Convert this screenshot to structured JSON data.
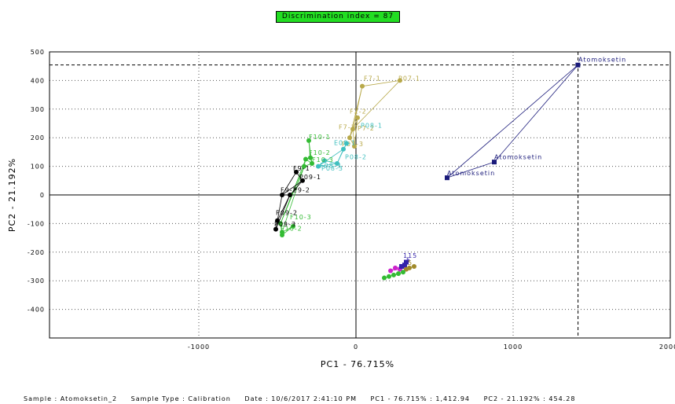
{
  "badge": "Discrimination index = 87",
  "footer": {
    "sample": "Sample : Atomoksetin_2",
    "sample_type": "Sample Type : Calibration",
    "date": "Date : 10/6/2017 2:41:10 PM",
    "pc1": "PC1 - 76.715% : 1,412.94",
    "pc2": "PC2 - 21.192% : 454.28"
  },
  "colors": {
    "atomoksetin": "#1a1a7a",
    "f07": "#b8a94a",
    "f08": "#3fbfbf",
    "f10": "#33bb33",
    "f09": "#000000",
    "p09": "#000000",
    "p10": "#33bb33",
    "cluster_magenta": "#cc22cc",
    "cluster_purple": "#3322aa",
    "cluster_olive": "#a08a2a",
    "cluster_green": "#33bb33",
    "badge": "#22dd22"
  },
  "chart_data": {
    "type": "scatter",
    "xlabel": "PC1 - 76.715%",
    "ylabel": "PC2 - 21.192%",
    "xlim": [
      -1950,
      2000
    ],
    "ylim": [
      -500,
      500
    ],
    "xticks": [
      -1000,
      0,
      1000,
      2000
    ],
    "yticks": [
      500,
      400,
      300,
      200,
      100,
      0,
      -100,
      -200,
      -300,
      -400
    ],
    "grid": true,
    "crosshair": {
      "x": 1412.94,
      "y": 454.28
    },
    "groups": [
      {
        "color": "#1a1a7a",
        "marker": "square",
        "points": [
          [
            1412,
            454
          ],
          [
            880,
            115
          ],
          [
            580,
            60
          ]
        ],
        "labels": [
          [
            1415,
            465,
            "Atomoksetin"
          ],
          [
            880,
            125,
            "Atomoksetin"
          ],
          [
            580,
            68,
            "Atomoksetin"
          ]
        ]
      },
      {
        "color": "#b8a94a",
        "marker": "circle",
        "points": [
          [
            280,
            400
          ],
          [
            40,
            380
          ],
          [
            -20,
            230
          ],
          [
            -40,
            200
          ],
          [
            -10,
            170
          ],
          [
            10,
            270
          ]
        ],
        "labels": [
          [
            50,
            400,
            "F7-1"
          ],
          [
            270,
            400,
            "P07-1"
          ],
          [
            -40,
            285,
            "F2-2"
          ],
          [
            -110,
            230,
            "F7-3"
          ],
          [
            10,
            225,
            "P7-2"
          ],
          [
            -90,
            170,
            "P07-3"
          ]
        ]
      },
      {
        "color": "#3fbfbf",
        "marker": "circle",
        "points": [
          [
            -200,
            120
          ],
          [
            -240,
            100
          ],
          [
            -120,
            110
          ],
          [
            -80,
            160
          ],
          [
            -60,
            180
          ]
        ],
        "labels": [
          [
            30,
            235,
            "P08-1"
          ],
          [
            -140,
            175,
            "E08-1"
          ],
          [
            -70,
            125,
            "P08-2"
          ],
          [
            -230,
            95,
            "F08-3"
          ],
          [
            -220,
            85,
            "P08-3"
          ]
        ]
      },
      {
        "color": "#33bb33",
        "marker": "circle",
        "points": [
          [
            -300,
            190
          ],
          [
            -290,
            130
          ],
          [
            -280,
            110
          ],
          [
            -320,
            125
          ],
          [
            -330,
            100
          ],
          [
            -480,
            -100
          ],
          [
            -470,
            -130
          ],
          [
            -470,
            -140
          ],
          [
            -400,
            -110
          ]
        ],
        "labels": [
          [
            -300,
            195,
            "F10-1"
          ],
          [
            -300,
            140,
            "F10-2"
          ],
          [
            -280,
            115,
            "F10-3"
          ],
          [
            -420,
            -85,
            "F10-3"
          ],
          [
            -480,
            -125,
            "F10-2"
          ]
        ]
      },
      {
        "color": "#000000",
        "marker": "circle",
        "points": [
          [
            -380,
            80
          ],
          [
            -340,
            50
          ],
          [
            -470,
            0
          ],
          [
            -420,
            0
          ],
          [
            -500,
            -90
          ],
          [
            -510,
            -120
          ]
        ],
        "labels": [
          [
            -400,
            85,
            "F9-1"
          ],
          [
            -360,
            55,
            "P09-1"
          ],
          [
            -480,
            10,
            "F9-2"
          ],
          [
            -400,
            10,
            "P9-2"
          ],
          [
            -510,
            -70,
            "P09-2"
          ],
          [
            -520,
            -110,
            "P09-3"
          ]
        ]
      },
      {
        "color": "#cc22cc",
        "marker": "circle",
        "points": [
          [
            220,
            -265
          ],
          [
            250,
            -255
          ],
          [
            280,
            -260
          ],
          [
            300,
            -250
          ]
        ],
        "labels": []
      },
      {
        "color": "#3322aa",
        "marker": "square",
        "points": [
          [
            320,
            -235
          ],
          [
            310,
            -245
          ],
          [
            290,
            -250
          ]
        ],
        "labels": [
          [
            300,
            -220,
            "115"
          ],
          [
            320,
            -235,
            "5"
          ]
        ]
      },
      {
        "color": "#a08a2a",
        "marker": "circle",
        "points": [
          [
            370,
            -250
          ],
          [
            340,
            -255
          ],
          [
            320,
            -260
          ]
        ],
        "labels": [
          [
            330,
            -245,
            "5"
          ]
        ]
      },
      {
        "color": "#33bb33",
        "marker": "circle",
        "points": [
          [
            180,
            -290
          ],
          [
            210,
            -285
          ],
          [
            240,
            -280
          ],
          [
            270,
            -275
          ],
          [
            300,
            -270
          ]
        ],
        "labels": []
      }
    ]
  }
}
